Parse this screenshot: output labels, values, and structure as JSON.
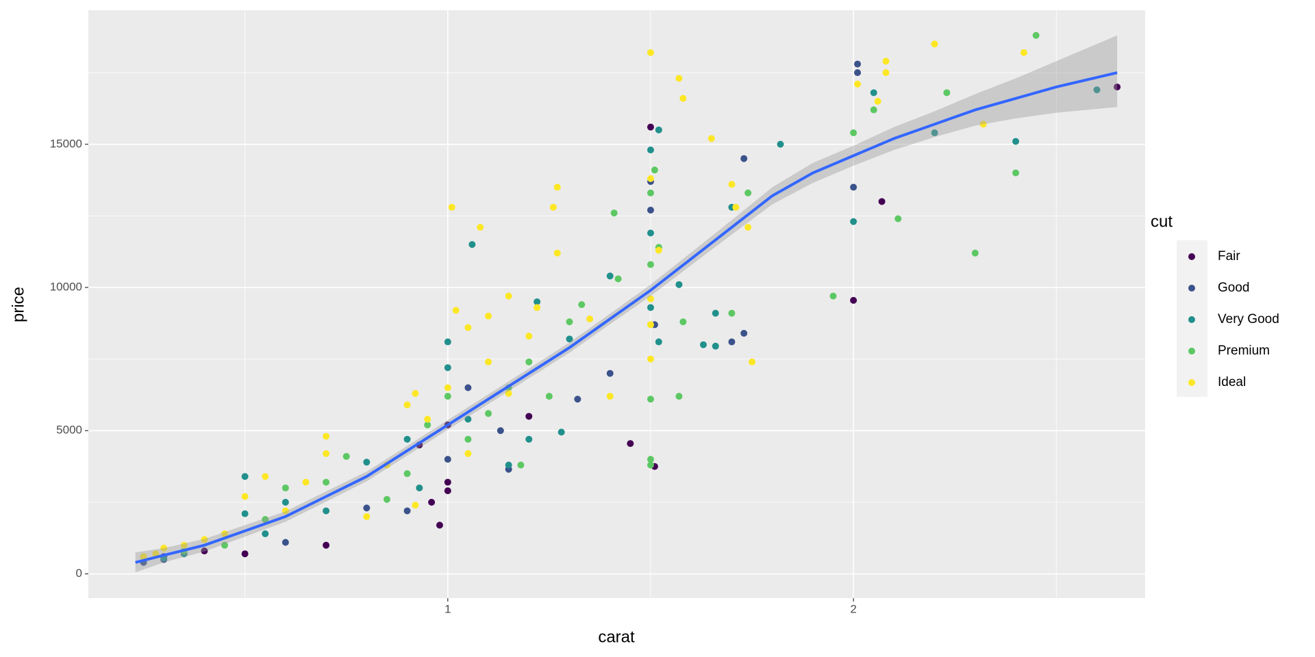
{
  "chart_data": {
    "type": "scatter",
    "x_label": "carat",
    "y_label": "price",
    "legend_title": "cut",
    "xlim": [
      0.114,
      2.719
    ],
    "ylim": [
      -848,
      19678
    ],
    "xticks": [
      1,
      2
    ],
    "yticks": [
      0,
      5000,
      10000,
      15000
    ],
    "xminorticks": [
      0.5,
      1.5,
      2.5
    ],
    "yminorticks": [
      2500,
      7500,
      12500,
      17500
    ],
    "grid": true,
    "legend": "right",
    "series": [
      {
        "name": "Fair",
        "color": "#440154",
        "x": [
          2.65,
          2.07,
          2.0,
          1.5,
          1.51,
          1.45,
          0.98,
          0.96,
          1.0,
          0.5,
          0.7,
          1.0,
          0.93,
          1.0,
          1.2,
          0.4,
          0.3
        ],
        "values": [
          17000,
          13000,
          9550,
          15600,
          3750,
          4550,
          1700,
          2500,
          2900,
          700,
          1000,
          3200,
          4500,
          5200,
          5500,
          800,
          600
        ]
      },
      {
        "name": "Good",
        "color": "#3B528B",
        "x": [
          2.01,
          2.01,
          2.0,
          1.5,
          1.5,
          1.73,
          1.73,
          1.7,
          1.4,
          1.15,
          1.13,
          1.32,
          0.9,
          1.0,
          0.6,
          0.3,
          0.25,
          1.51,
          0.8,
          1.05
        ],
        "values": [
          17800,
          17500,
          13500,
          13700,
          12700,
          14500,
          8400,
          8100,
          7000,
          3650,
          5000,
          6100,
          2200,
          4000,
          1100,
          500,
          400,
          8700,
          2300,
          6500
        ]
      },
      {
        "name": "Very Good",
        "color": "#21908C",
        "x": [
          2.6,
          2.4,
          2.2,
          2.05,
          2.0,
          1.82,
          1.66,
          1.66,
          1.63,
          1.57,
          1.5,
          1.5,
          1.52,
          1.52,
          1.06,
          1.4,
          1.22,
          1.3,
          1.28,
          1.15,
          1.2,
          1.0,
          1.0,
          0.9,
          0.7,
          0.5,
          0.5,
          0.3,
          0.35,
          0.55,
          0.8,
          0.93,
          0.6,
          1.05,
          1.7,
          1.5
        ],
        "values": [
          16900,
          15100,
          15400,
          16800,
          12300,
          15000,
          9100,
          7950,
          8000,
          10100,
          11900,
          14800,
          8100,
          15500,
          11500,
          10400,
          9500,
          8200,
          4950,
          3800,
          4700,
          8100,
          7200,
          4700,
          2200,
          3400,
          2100,
          550,
          700,
          1400,
          3900,
          3000,
          2500,
          5400,
          12800,
          9300
        ]
      },
      {
        "name": "Premium",
        "color": "#5DC863",
        "x": [
          2.45,
          2.3,
          2.4,
          2.23,
          2.11,
          2.05,
          2.0,
          1.95,
          1.74,
          1.7,
          1.58,
          1.57,
          1.51,
          1.5,
          1.52,
          1.5,
          1.5,
          1.5,
          1.5,
          1.41,
          1.42,
          1.33,
          1.3,
          1.25,
          1.2,
          1.15,
          1.05,
          1.0,
          0.95,
          0.85,
          0.75,
          0.7,
          0.6,
          0.55,
          0.45,
          0.35,
          0.25,
          1.18,
          1.1,
          0.9
        ],
        "values": [
          18800,
          11200,
          14000,
          16800,
          12400,
          16200,
          15400,
          9700,
          13300,
          9100,
          8800,
          6200,
          14100,
          13300,
          11400,
          10800,
          6100,
          4000,
          3800,
          12600,
          10300,
          9400,
          8800,
          6200,
          7400,
          6500,
          4700,
          6200,
          5200,
          2600,
          4100,
          3200,
          3000,
          1900,
          1000,
          800,
          600,
          3800,
          5600,
          3500
        ]
      },
      {
        "name": "Ideal",
        "color": "#FDE725",
        "x": [
          2.42,
          2.2,
          2.08,
          2.08,
          2.01,
          2.06,
          2.32,
          1.5,
          1.57,
          1.58,
          1.65,
          1.7,
          1.71,
          1.74,
          1.75,
          1.5,
          1.52,
          1.5,
          1.5,
          1.5,
          1.27,
          1.26,
          1.27,
          1.01,
          1.08,
          1.15,
          1.22,
          1.1,
          1.02,
          1.05,
          1.4,
          1.35,
          1.2,
          1.1,
          1.0,
          0.92,
          0.95,
          0.9,
          1.05,
          1.15,
          0.7,
          0.7,
          0.65,
          0.55,
          0.5,
          0.6,
          0.8,
          0.45,
          0.4,
          0.35,
          0.3,
          0.28,
          0.25,
          0.85,
          0.92
        ],
        "values": [
          18200,
          18500,
          17900,
          17500,
          17100,
          16500,
          15700,
          18200,
          17300,
          16600,
          15200,
          13600,
          12800,
          12100,
          7400,
          13800,
          11300,
          9600,
          8700,
          7500,
          13500,
          12800,
          11200,
          12800,
          12100,
          9700,
          9300,
          9000,
          9200,
          8600,
          6200,
          8900,
          8300,
          7400,
          6500,
          6300,
          5400,
          5900,
          4200,
          6300,
          4800,
          4200,
          3200,
          3400,
          2700,
          2200,
          2000,
          1400,
          1200,
          1000,
          900,
          700,
          600,
          3800,
          2400
        ]
      }
    ],
    "smooth": {
      "color": "#3366FF",
      "band_color": "#999999",
      "x": [
        0.23,
        0.3,
        0.4,
        0.5,
        0.6,
        0.7,
        0.8,
        0.9,
        1.0,
        1.1,
        1.2,
        1.3,
        1.4,
        1.5,
        1.6,
        1.7,
        1.8,
        1.9,
        2.0,
        2.1,
        2.2,
        2.3,
        2.4,
        2.5,
        2.65
      ],
      "values": [
        400,
        650,
        1000,
        1500,
        2000,
        2700,
        3400,
        4300,
        5200,
        6100,
        7000,
        7900,
        8900,
        9900,
        11000,
        12100,
        13200,
        14000,
        14600,
        15200,
        15700,
        16200,
        16600,
        17000,
        17500
      ],
      "lower": [
        50,
        400,
        780,
        1300,
        1820,
        2520,
        3230,
        4130,
        5030,
        5930,
        6830,
        7720,
        8720,
        9700,
        10780,
        11850,
        12900,
        13650,
        14250,
        14800,
        15250,
        15650,
        15900,
        16100,
        16300
      ],
      "upper": [
        750,
        900,
        1220,
        1700,
        2180,
        2880,
        3570,
        4470,
        5370,
        6270,
        7170,
        8080,
        9080,
        10100,
        11220,
        12350,
        13500,
        14350,
        14950,
        15600,
        16150,
        16750,
        17300,
        17900,
        18800
      ]
    }
  }
}
